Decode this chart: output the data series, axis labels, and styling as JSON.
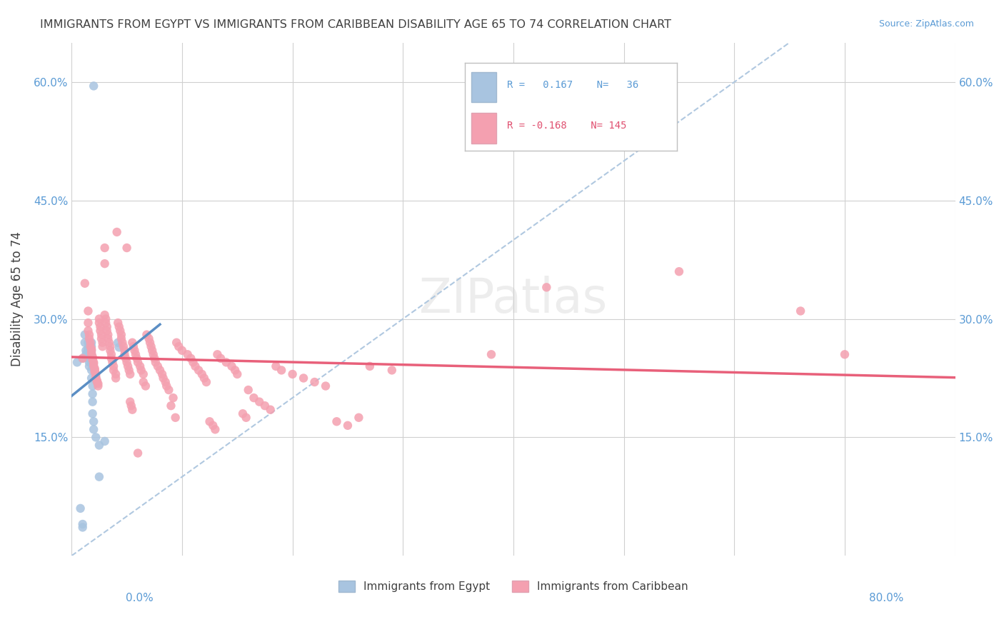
{
  "title": "IMMIGRANTS FROM EGYPT VS IMMIGRANTS FROM CARIBBEAN DISABILITY AGE 65 TO 74 CORRELATION CHART",
  "source": "Source: ZipAtlas.com",
  "ylabel": "Disability Age 65 to 74",
  "yticks": [
    "15.0%",
    "30.0%",
    "45.0%",
    "60.0%"
  ],
  "ytick_vals": [
    0.15,
    0.3,
    0.45,
    0.6
  ],
  "xlim": [
    0.0,
    0.8
  ],
  "ylim": [
    0.0,
    0.65
  ],
  "color_egypt": "#a8c4e0",
  "color_caribbean": "#f4a0b0",
  "color_egypt_line": "#5b8ec4",
  "color_caribbean_line": "#e8607a",
  "color_diagonal": "#b0c8e0",
  "watermark": "ZIPatlas",
  "egypt_scatter": [
    [
      0.005,
      0.245
    ],
    [
      0.008,
      0.06
    ],
    [
      0.01,
      0.04
    ],
    [
      0.01,
      0.036
    ],
    [
      0.01,
      0.25
    ],
    [
      0.012,
      0.28
    ],
    [
      0.012,
      0.27
    ],
    [
      0.013,
      0.26
    ],
    [
      0.013,
      0.255
    ],
    [
      0.015,
      0.27
    ],
    [
      0.015,
      0.263
    ],
    [
      0.015,
      0.26
    ],
    [
      0.015,
      0.255
    ],
    [
      0.015,
      0.25
    ],
    [
      0.016,
      0.245
    ],
    [
      0.016,
      0.24
    ],
    [
      0.018,
      0.27
    ],
    [
      0.018,
      0.265
    ],
    [
      0.018,
      0.26
    ],
    [
      0.018,
      0.255
    ],
    [
      0.018,
      0.245
    ],
    [
      0.018,
      0.235
    ],
    [
      0.018,
      0.225
    ],
    [
      0.019,
      0.215
    ],
    [
      0.019,
      0.205
    ],
    [
      0.019,
      0.195
    ],
    [
      0.019,
      0.18
    ],
    [
      0.02,
      0.17
    ],
    [
      0.02,
      0.16
    ],
    [
      0.02,
      0.595
    ],
    [
      0.022,
      0.15
    ],
    [
      0.025,
      0.14
    ],
    [
      0.025,
      0.1
    ],
    [
      0.03,
      0.145
    ],
    [
      0.042,
      0.27
    ],
    [
      0.043,
      0.264
    ]
  ],
  "caribbean_scatter": [
    [
      0.01,
      0.25
    ],
    [
      0.012,
      0.345
    ],
    [
      0.015,
      0.31
    ],
    [
      0.015,
      0.295
    ],
    [
      0.015,
      0.285
    ],
    [
      0.016,
      0.28
    ],
    [
      0.016,
      0.275
    ],
    [
      0.017,
      0.27
    ],
    [
      0.017,
      0.265
    ],
    [
      0.018,
      0.262
    ],
    [
      0.018,
      0.26
    ],
    [
      0.018,
      0.257
    ],
    [
      0.018,
      0.255
    ],
    [
      0.019,
      0.252
    ],
    [
      0.019,
      0.25
    ],
    [
      0.019,
      0.248
    ],
    [
      0.02,
      0.245
    ],
    [
      0.02,
      0.243
    ],
    [
      0.02,
      0.24
    ],
    [
      0.021,
      0.237
    ],
    [
      0.021,
      0.235
    ],
    [
      0.021,
      0.233
    ],
    [
      0.022,
      0.23
    ],
    [
      0.022,
      0.227
    ],
    [
      0.022,
      0.225
    ],
    [
      0.023,
      0.222
    ],
    [
      0.023,
      0.22
    ],
    [
      0.024,
      0.218
    ],
    [
      0.024,
      0.215
    ],
    [
      0.025,
      0.3
    ],
    [
      0.025,
      0.295
    ],
    [
      0.026,
      0.29
    ],
    [
      0.026,
      0.285
    ],
    [
      0.027,
      0.28
    ],
    [
      0.027,
      0.275
    ],
    [
      0.028,
      0.27
    ],
    [
      0.028,
      0.265
    ],
    [
      0.03,
      0.39
    ],
    [
      0.03,
      0.37
    ],
    [
      0.03,
      0.305
    ],
    [
      0.031,
      0.3
    ],
    [
      0.031,
      0.295
    ],
    [
      0.032,
      0.29
    ],
    [
      0.032,
      0.285
    ],
    [
      0.033,
      0.28
    ],
    [
      0.033,
      0.275
    ],
    [
      0.034,
      0.27
    ],
    [
      0.035,
      0.265
    ],
    [
      0.035,
      0.26
    ],
    [
      0.036,
      0.255
    ],
    [
      0.036,
      0.25
    ],
    [
      0.037,
      0.245
    ],
    [
      0.038,
      0.24
    ],
    [
      0.038,
      0.235
    ],
    [
      0.04,
      0.23
    ],
    [
      0.04,
      0.225
    ],
    [
      0.041,
      0.41
    ],
    [
      0.042,
      0.295
    ],
    [
      0.043,
      0.29
    ],
    [
      0.044,
      0.285
    ],
    [
      0.045,
      0.28
    ],
    [
      0.045,
      0.275
    ],
    [
      0.046,
      0.27
    ],
    [
      0.047,
      0.265
    ],
    [
      0.048,
      0.26
    ],
    [
      0.048,
      0.255
    ],
    [
      0.049,
      0.25
    ],
    [
      0.05,
      0.245
    ],
    [
      0.05,
      0.39
    ],
    [
      0.051,
      0.24
    ],
    [
      0.052,
      0.235
    ],
    [
      0.053,
      0.23
    ],
    [
      0.053,
      0.195
    ],
    [
      0.054,
      0.19
    ],
    [
      0.055,
      0.185
    ],
    [
      0.055,
      0.27
    ],
    [
      0.056,
      0.265
    ],
    [
      0.057,
      0.26
    ],
    [
      0.058,
      0.255
    ],
    [
      0.059,
      0.25
    ],
    [
      0.06,
      0.245
    ],
    [
      0.06,
      0.13
    ],
    [
      0.062,
      0.24
    ],
    [
      0.063,
      0.235
    ],
    [
      0.065,
      0.23
    ],
    [
      0.065,
      0.22
    ],
    [
      0.067,
      0.215
    ],
    [
      0.068,
      0.28
    ],
    [
      0.07,
      0.275
    ],
    [
      0.071,
      0.27
    ],
    [
      0.072,
      0.265
    ],
    [
      0.073,
      0.26
    ],
    [
      0.074,
      0.255
    ],
    [
      0.075,
      0.25
    ],
    [
      0.076,
      0.245
    ],
    [
      0.078,
      0.24
    ],
    [
      0.08,
      0.235
    ],
    [
      0.082,
      0.23
    ],
    [
      0.083,
      0.225
    ],
    [
      0.085,
      0.22
    ],
    [
      0.086,
      0.215
    ],
    [
      0.088,
      0.21
    ],
    [
      0.09,
      0.19
    ],
    [
      0.092,
      0.2
    ],
    [
      0.094,
      0.175
    ],
    [
      0.095,
      0.27
    ],
    [
      0.097,
      0.265
    ],
    [
      0.1,
      0.26
    ],
    [
      0.105,
      0.255
    ],
    [
      0.108,
      0.25
    ],
    [
      0.11,
      0.245
    ],
    [
      0.112,
      0.24
    ],
    [
      0.115,
      0.235
    ],
    [
      0.118,
      0.23
    ],
    [
      0.12,
      0.225
    ],
    [
      0.122,
      0.22
    ],
    [
      0.125,
      0.17
    ],
    [
      0.128,
      0.165
    ],
    [
      0.13,
      0.16
    ],
    [
      0.132,
      0.255
    ],
    [
      0.135,
      0.25
    ],
    [
      0.14,
      0.245
    ],
    [
      0.145,
      0.24
    ],
    [
      0.148,
      0.235
    ],
    [
      0.15,
      0.23
    ],
    [
      0.155,
      0.18
    ],
    [
      0.158,
      0.175
    ],
    [
      0.16,
      0.21
    ],
    [
      0.165,
      0.2
    ],
    [
      0.17,
      0.195
    ],
    [
      0.175,
      0.19
    ],
    [
      0.18,
      0.185
    ],
    [
      0.185,
      0.24
    ],
    [
      0.19,
      0.235
    ],
    [
      0.2,
      0.23
    ],
    [
      0.21,
      0.225
    ],
    [
      0.22,
      0.22
    ],
    [
      0.23,
      0.215
    ],
    [
      0.24,
      0.17
    ],
    [
      0.25,
      0.165
    ],
    [
      0.26,
      0.175
    ],
    [
      0.27,
      0.24
    ],
    [
      0.29,
      0.235
    ],
    [
      0.38,
      0.255
    ],
    [
      0.43,
      0.34
    ],
    [
      0.55,
      0.36
    ],
    [
      0.66,
      0.31
    ],
    [
      0.7,
      0.255
    ]
  ]
}
